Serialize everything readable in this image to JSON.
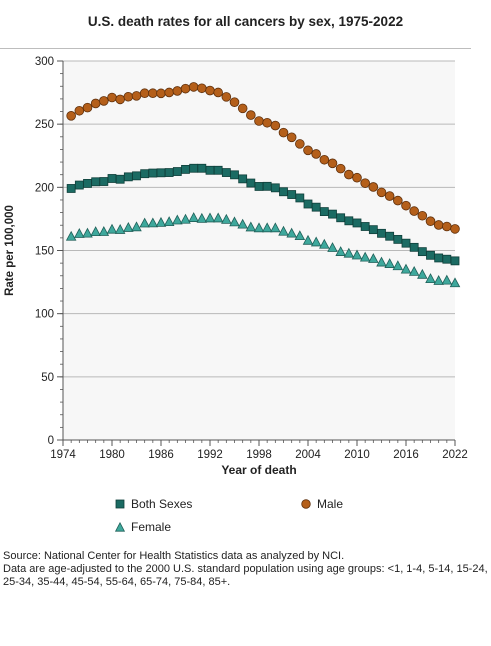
{
  "chart_data": {
    "type": "scatter",
    "title": "U.S. death rates for all cancers by sex, 1975-2022",
    "xlabel": "Year of death",
    "ylabel": "Rate per 100,000",
    "xlim": [
      1974,
      2022
    ],
    "ylim": [
      0,
      300
    ],
    "x_ticks": [
      1974,
      1980,
      1986,
      1992,
      1998,
      2004,
      2010,
      2016,
      2022
    ],
    "y_ticks": [
      0,
      50,
      100,
      150,
      200,
      250,
      300
    ],
    "grid": "horizontal",
    "legend_position": "bottom",
    "x": [
      1975,
      1976,
      1977,
      1978,
      1979,
      1980,
      1981,
      1982,
      1983,
      1984,
      1985,
      1986,
      1987,
      1988,
      1989,
      1990,
      1991,
      1992,
      1993,
      1994,
      1995,
      1996,
      1997,
      1998,
      1999,
      2000,
      2001,
      2002,
      2003,
      2004,
      2005,
      2006,
      2007,
      2008,
      2009,
      2010,
      2011,
      2012,
      2013,
      2014,
      2015,
      2016,
      2017,
      2018,
      2019,
      2020,
      2021,
      2022
    ],
    "series": [
      {
        "name": "Both Sexes",
        "marker": "square",
        "color": "#1b6b63",
        "values": [
          199.1,
          201.8,
          203.1,
          204.4,
          204.6,
          207.0,
          206.4,
          208.3,
          209.1,
          210.8,
          211.3,
          211.5,
          211.7,
          212.5,
          214.2,
          215.1,
          215.1,
          213.5,
          213.5,
          211.7,
          209.9,
          206.7,
          203.4,
          200.7,
          200.8,
          199.6,
          196.5,
          194.3,
          191.6,
          186.8,
          184.3,
          180.8,
          178.8,
          175.9,
          173.5,
          171.8,
          169.0,
          166.5,
          163.6,
          161.3,
          158.8,
          155.8,
          152.5,
          149.1,
          146.2,
          144.1,
          143.1,
          141.8
        ]
      },
      {
        "name": "Male",
        "marker": "circle",
        "color": "#b45f1a",
        "values": [
          256.6,
          260.6,
          263.1,
          266.4,
          268.4,
          271.1,
          269.6,
          271.7,
          272.4,
          274.5,
          274.5,
          274.4,
          275.1,
          276.3,
          278.1,
          279.5,
          278.4,
          276.6,
          275.1,
          271.6,
          267.4,
          262.5,
          257.2,
          252.5,
          251.1,
          248.9,
          243.3,
          239.6,
          234.4,
          229.3,
          226.4,
          221.8,
          219.0,
          214.8,
          210.1,
          207.6,
          203.3,
          200.3,
          196.0,
          193.1,
          189.5,
          185.5,
          181.2,
          177.5,
          173.2,
          170.2,
          169.0,
          167.1
        ]
      },
      {
        "name": "Female",
        "marker": "triangle",
        "color": "#3ea89c",
        "values": [
          161.1,
          163.3,
          163.6,
          164.8,
          164.9,
          166.7,
          166.5,
          168.1,
          168.6,
          171.6,
          171.7,
          172.1,
          172.7,
          174.0,
          174.6,
          175.9,
          175.3,
          175.6,
          175.6,
          174.5,
          172.5,
          170.7,
          168.5,
          167.8,
          167.8,
          167.8,
          165.1,
          163.6,
          161.6,
          157.9,
          156.6,
          154.8,
          152.2,
          149.0,
          147.7,
          146.3,
          144.6,
          143.5,
          140.7,
          139.5,
          137.8,
          135.1,
          133.3,
          131.0,
          127.6,
          126.1,
          126.4,
          124.3
        ]
      }
    ]
  },
  "legend": {
    "items": [
      "Both Sexes",
      "Male",
      "Female"
    ]
  },
  "source": {
    "line1": "Source: National Center for Health Statistics data as analyzed by NCI.",
    "line2": "Data are age-adjusted to the 2000 U.S. standard population using age groups: <1, 1-4, 5-14, 15-24, 25-34, 35-44, 45-54, 55-64, 65-74, 75-84, 85+."
  }
}
